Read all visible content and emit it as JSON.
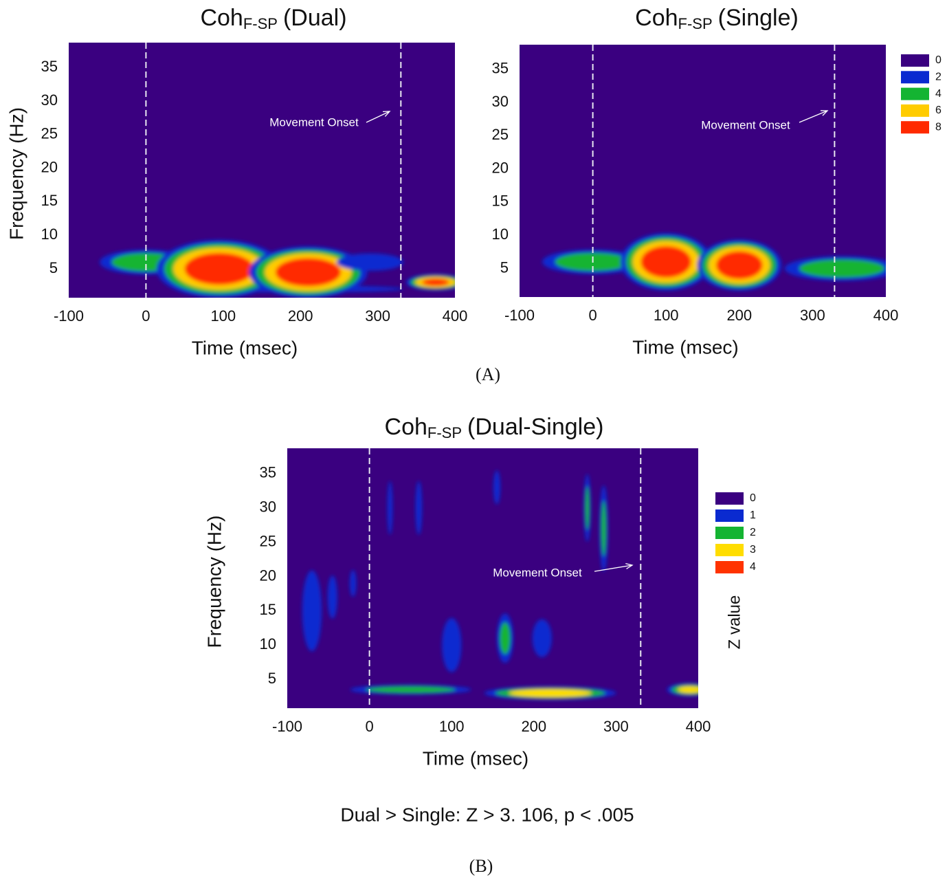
{
  "chart_data": [
    {
      "type": "heatmap",
      "title": "Coh",
      "title_subscript": "F-SP",
      "title_suffix": "(Dual)",
      "x_label": "Time (msec)",
      "y_label": "Frequency (Hz)",
      "xlim": [
        -100,
        400
      ],
      "ylim": [
        0.7,
        38.7
      ],
      "xticks": [
        -100,
        0,
        100,
        200,
        300,
        400
      ],
      "yticks": [
        5,
        10,
        15,
        20,
        25,
        30,
        35
      ],
      "markers": [
        0,
        330
      ],
      "annotation": "Movement Onset",
      "background": "#3a0080",
      "blobs": [
        {
          "x": 200,
          "y": 2,
          "value": 2.5,
          "x_span": 320,
          "y_span": 1.2
        },
        {
          "x": 0,
          "y": 6,
          "value": 5,
          "x_span": 130,
          "y_span": 4
        },
        {
          "x": 95,
          "y": 5,
          "value": 9,
          "x_span": 170,
          "y_span": 9
        },
        {
          "x": 210,
          "y": 4.5,
          "value": 9,
          "x_span": 160,
          "y_span": 8
        },
        {
          "x": 290,
          "y": 6,
          "value": 3,
          "x_span": 100,
          "y_span": 3
        },
        {
          "x": 375,
          "y": 3,
          "value": 8,
          "x_span": 80,
          "y_span": 2.5
        }
      ]
    },
    {
      "type": "heatmap",
      "title": "Coh",
      "title_subscript": "F-SP",
      "title_suffix": "(Single)",
      "x_label": "Time (msec)",
      "xlim": [
        -100,
        400
      ],
      "ylim": [
        0.7,
        38.7
      ],
      "xticks": [
        -100,
        0,
        100,
        200,
        300,
        400
      ],
      "yticks": [
        5,
        10,
        15,
        20,
        25,
        30,
        35
      ],
      "markers": [
        0,
        330
      ],
      "annotation": "Movement Onset",
      "background": "#3a0080",
      "legend": [
        {
          "value": 0,
          "color": "#3a0080"
        },
        {
          "value": 2,
          "color": "#0a2ad0"
        },
        {
          "value": 4,
          "color": "#14b432"
        },
        {
          "value": 6,
          "color": "#ffcc00"
        },
        {
          "value": 8,
          "color": "#ff2a00"
        }
      ],
      "blobs": [
        {
          "x": 0,
          "y": 6,
          "value": 5,
          "x_span": 150,
          "y_span": 4
        },
        {
          "x": 100,
          "y": 6,
          "value": 9,
          "x_span": 130,
          "y_span": 9
        },
        {
          "x": 200,
          "y": 5.5,
          "value": 9,
          "x_span": 120,
          "y_span": 8
        },
        {
          "x": 340,
          "y": 5,
          "value": 5,
          "x_span": 170,
          "y_span": 4
        }
      ]
    },
    {
      "type": "heatmap",
      "title": "Coh",
      "title_subscript": "F-SP",
      "title_suffix": "(Dual-Single)",
      "x_label": "Time (msec)",
      "y_label": "Frequency (Hz)",
      "xlim": [
        -100,
        400
      ],
      "ylim": [
        0.8,
        38.7
      ],
      "xticks": [
        -100,
        0,
        100,
        200,
        300,
        400
      ],
      "yticks": [
        5,
        10,
        15,
        20,
        25,
        30,
        35
      ],
      "markers": [
        0,
        330
      ],
      "annotation": "Movement Onset",
      "background": "#3a0080",
      "colorbar_label": "Z value",
      "legend": [
        {
          "value": 0,
          "color": "#3a0080"
        },
        {
          "value": 1,
          "color": "#0a2ad0"
        },
        {
          "value": 2,
          "color": "#14b432"
        },
        {
          "value": 3,
          "color": "#ffdd00"
        },
        {
          "value": 4,
          "color": "#ff3300"
        }
      ],
      "blobs": [
        {
          "x": 50,
          "y": 3.5,
          "value": 2.5,
          "x_span": 160,
          "y_span": 1.5
        },
        {
          "x": 220,
          "y": 3,
          "value": 3.5,
          "x_span": 170,
          "y_span": 2
        },
        {
          "x": 390,
          "y": 3.5,
          "value": 3,
          "x_span": 60,
          "y_span": 2
        },
        {
          "x": 165,
          "y": 11,
          "value": 2,
          "x_span": 22,
          "y_span": 8
        },
        {
          "x": 265,
          "y": 30,
          "value": 2,
          "x_span": 9,
          "y_span": 11
        },
        {
          "x": 285,
          "y": 27,
          "value": 2,
          "x_span": 11,
          "y_span": 14
        },
        {
          "x": -70,
          "y": 15,
          "value": 1,
          "x_span": 30,
          "y_span": 15
        },
        {
          "x": -45,
          "y": 17,
          "value": 1,
          "x_span": 15,
          "y_span": 8
        },
        {
          "x": 100,
          "y": 10,
          "value": 1,
          "x_span": 30,
          "y_span": 10
        },
        {
          "x": 210,
          "y": 11,
          "value": 1,
          "x_span": 30,
          "y_span": 7
        },
        {
          "x": 155,
          "y": 33,
          "value": 1.2,
          "x_span": 10,
          "y_span": 6
        },
        {
          "x": 60,
          "y": 30,
          "value": 1,
          "x_span": 10,
          "y_span": 10
        },
        {
          "x": 25,
          "y": 30,
          "value": 1,
          "x_span": 8,
          "y_span": 10
        },
        {
          "x": -20,
          "y": 19,
          "value": 1,
          "x_span": 10,
          "y_span": 5
        }
      ]
    }
  ],
  "panel_labels": [
    "(A)",
    "(B)"
  ],
  "footnote": "Dual > Single: Z > 3. 106, p < .005"
}
